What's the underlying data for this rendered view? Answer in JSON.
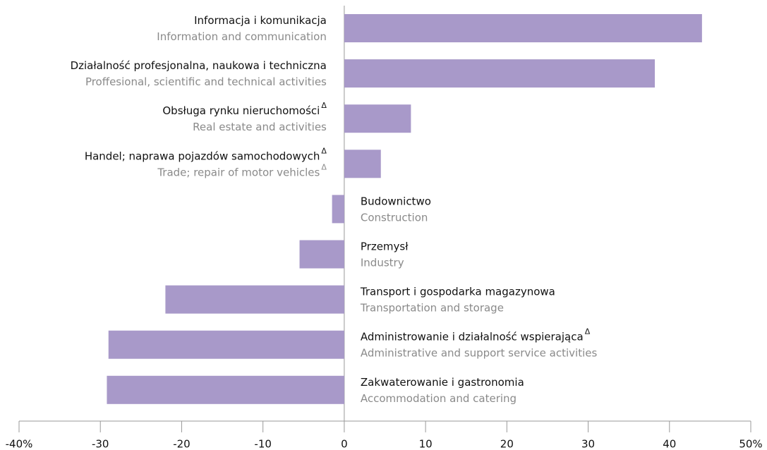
{
  "chart_data": {
    "type": "barh",
    "categories": [
      "Informacja i komunikacja",
      "Działalność profesjonalna, naukowa i techniczna",
      "Obsługa rynku nieruchomości",
      "Handel; naprawa pojazdów samochodowych",
      "Budownictwo",
      "Przemysł",
      "Transport i gospodarka magazynowa",
      "Administrowanie i działalność wspierająca",
      "Zakwaterowanie i gastronomia"
    ],
    "categories_en": [
      "Information and communication",
      "Proffesional, scientific and technical activities",
      "Real estate and activities",
      "Trade; repair of motor vehicles",
      "Construction",
      "Industry",
      "Transportation and storage",
      "Administrative and support service activities",
      "Accommodation and catering"
    ],
    "markers": [
      null,
      null,
      "Δ",
      "Δ",
      null,
      null,
      null,
      "Δ",
      null
    ],
    "markers_en": [
      null,
      null,
      null,
      "Δ",
      null,
      null,
      null,
      null,
      null
    ],
    "values": [
      44,
      38.2,
      8.2,
      4.5,
      -1.5,
      -5.5,
      -22,
      -29,
      -29.2
    ],
    "color": "#a899c9",
    "xlim": [
      -40,
      50
    ],
    "xticks": [
      {
        "value": -40,
        "label": "-40%"
      },
      -30,
      -20,
      -10,
      0,
      10,
      20,
      30,
      40,
      {
        "value": 50,
        "label": "50%"
      }
    ]
  }
}
